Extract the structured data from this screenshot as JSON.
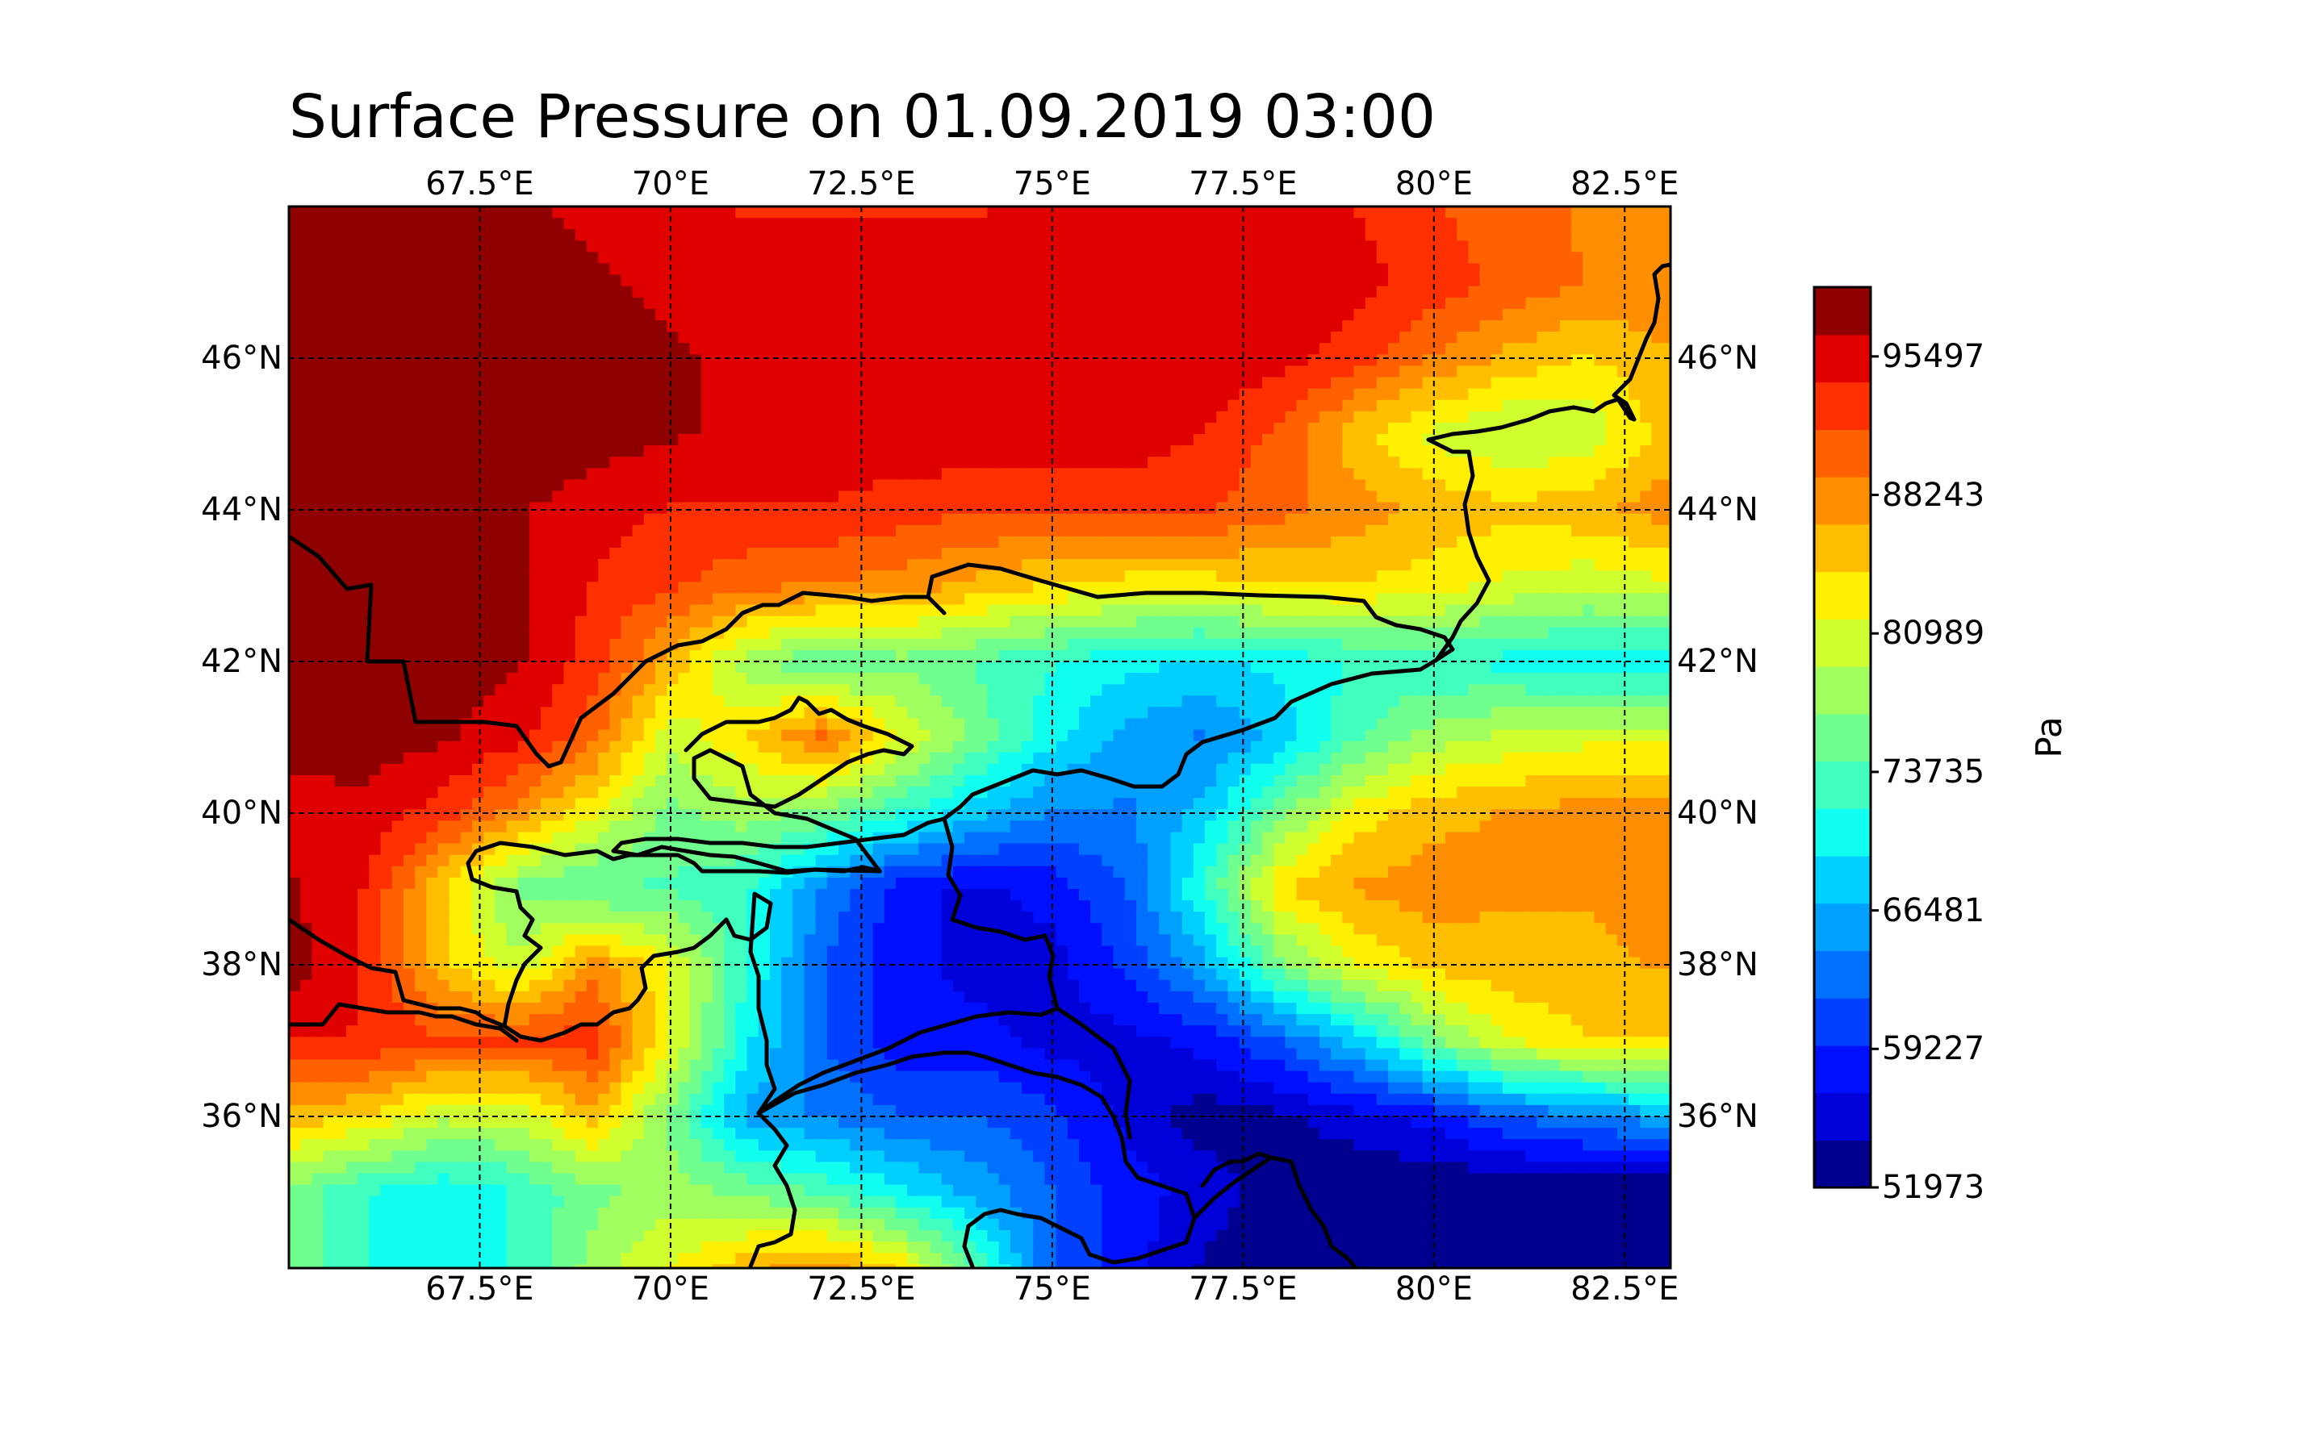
{
  "title": "Surface Pressure on 01.09.2019 03:00",
  "map": {
    "lon_range": [
      65,
      83.1
    ],
    "lat_range": [
      34,
      48
    ],
    "lon_ticks": [
      67.5,
      70,
      72.5,
      75,
      77.5,
      80,
      82.5
    ],
    "lon_tick_labels": [
      "67.5°E",
      "70°E",
      "72.5°E",
      "75°E",
      "77.5°E",
      "80°E",
      "82.5°E"
    ],
    "lat_ticks": [
      36,
      38,
      40,
      42,
      44,
      46
    ],
    "lat_tick_labels": [
      "36°N",
      "38°N",
      "40°N",
      "42°N",
      "44°N",
      "46°N"
    ],
    "gridlines": true,
    "gridline_style": "dashed",
    "features": [
      "country borders"
    ]
  },
  "colorbar": {
    "label": "Pa",
    "min": 51973,
    "max": 99124,
    "tick_values": [
      51973,
      59227,
      66481,
      73735,
      80989,
      88243,
      95497
    ],
    "tick_labels": [
      "51973",
      "59227",
      "66481",
      "73735",
      "80989",
      "88243",
      "95497"
    ],
    "colors": [
      "#00008f",
      "#0000d8",
      "#0010ff",
      "#0040ff",
      "#0070ff",
      "#00a0ff",
      "#00d0ff",
      "#10ffef",
      "#40ffbf",
      "#70ff8f",
      "#a0ff5f",
      "#d0ff2f",
      "#ffef00",
      "#ffbf00",
      "#ff8f00",
      "#ff6000",
      "#ff3000",
      "#e00000",
      "#8f0000"
    ],
    "colormap": "jet"
  },
  "chart_data": {
    "type": "heatmap",
    "title": "Surface Pressure on 01.09.2019 03:00",
    "xlabel": "",
    "ylabel": "",
    "unit": "Pa",
    "lon": [
      65,
      66,
      67,
      68,
      69,
      70,
      71,
      72,
      73,
      74,
      75,
      76,
      77,
      78,
      79,
      80,
      81,
      82,
      83
    ],
    "lat": [
      48,
      47,
      46,
      45,
      44,
      43,
      42,
      41,
      40,
      39,
      38,
      37,
      36,
      35,
      34
    ],
    "values": [
      [
        97000,
        97000,
        97000,
        97000,
        96000,
        95000,
        94000,
        94000,
        94000,
        94000,
        95000,
        95000,
        95000,
        95000,
        94000,
        92000,
        90000,
        89000,
        89000
      ],
      [
        99000,
        99000,
        98000,
        98000,
        97000,
        96000,
        95000,
        95000,
        95000,
        95000,
        96000,
        96000,
        96000,
        96000,
        95000,
        93000,
        91000,
        89000,
        89000
      ],
      [
        99000,
        99000,
        99000,
        99000,
        98000,
        97000,
        96000,
        96000,
        96000,
        96000,
        96000,
        96000,
        96000,
        95000,
        93000,
        89000,
        86000,
        84000,
        86000
      ],
      [
        99000,
        99000,
        99000,
        99000,
        98000,
        97000,
        96000,
        96000,
        96000,
        96000,
        96000,
        96000,
        94000,
        91000,
        85000,
        81000,
        79000,
        80000,
        85000
      ],
      [
        99000,
        99000,
        99000,
        97000,
        95000,
        94000,
        94000,
        94000,
        93000,
        92000,
        92000,
        92000,
        92000,
        90000,
        88000,
        86000,
        85000,
        86000,
        88000
      ],
      [
        99000,
        99000,
        99000,
        97000,
        94000,
        92000,
        90000,
        89000,
        88000,
        86000,
        84000,
        83000,
        83000,
        84000,
        84000,
        83000,
        81000,
        80000,
        81000
      ],
      [
        99000,
        99000,
        98000,
        97000,
        93000,
        86000,
        78000,
        74000,
        76000,
        74000,
        72000,
        70000,
        69000,
        70000,
        72000,
        72000,
        71000,
        70000,
        70000
      ],
      [
        98000,
        98000,
        97000,
        95000,
        90000,
        80000,
        84000,
        90000,
        82000,
        76000,
        70000,
        66000,
        64000,
        68000,
        74000,
        78000,
        80000,
        81000,
        81000
      ],
      [
        95000,
        96000,
        93000,
        88000,
        82000,
        76000,
        78000,
        76000,
        72000,
        68000,
        64000,
        64000,
        68000,
        76000,
        83000,
        86000,
        87000,
        88000,
        88000
      ],
      [
        97000,
        94000,
        85000,
        76000,
        74000,
        74000,
        72000,
        64000,
        58000,
        56000,
        58000,
        62000,
        72000,
        84000,
        87000,
        88000,
        87000,
        87000,
        88000
      ],
      [
        98000,
        94000,
        85000,
        80000,
        88000,
        82000,
        72000,
        62000,
        58000,
        56000,
        56000,
        60000,
        66000,
        76000,
        82000,
        85000,
        86000,
        86000,
        87000
      ],
      [
        94000,
        94000,
        92000,
        92000,
        93000,
        82000,
        70000,
        62000,
        58000,
        58000,
        56000,
        56000,
        58000,
        62000,
        68000,
        76000,
        82000,
        84000,
        84000
      ],
      [
        86000,
        84000,
        80000,
        80000,
        86000,
        76000,
        66000,
        64000,
        62000,
        62000,
        60000,
        56000,
        53000,
        54000,
        56000,
        58000,
        62000,
        64000,
        66000
      ],
      [
        76000,
        72000,
        70000,
        72000,
        76000,
        78000,
        76000,
        74000,
        70000,
        66000,
        62000,
        58000,
        56000,
        53000,
        52000,
        52000,
        52000,
        52000,
        52000
      ],
      [
        76000,
        72000,
        70000,
        72000,
        78000,
        82000,
        86000,
        88000,
        84000,
        74000,
        62000,
        58000,
        54000,
        52000,
        52000,
        52000,
        52000,
        52000,
        52000
      ]
    ]
  }
}
